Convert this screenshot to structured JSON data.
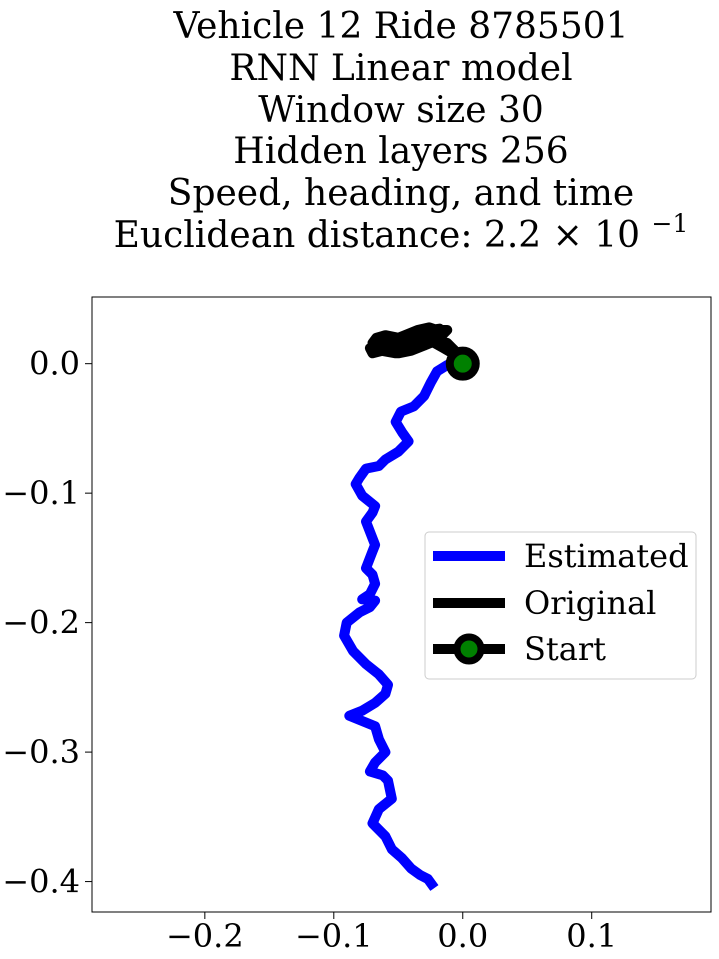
{
  "chart_data": {
    "type": "line",
    "title_lines": [
      "Vehicle 12 Ride 8785501",
      "RNN Linear model",
      "Window size 30",
      "Hidden layers 256",
      "Speed, heading, and time"
    ],
    "title_metric": {
      "label": "Euclidean distance: 2.2",
      "times": "×",
      "base": "10",
      "exponent": "−1"
    },
    "xlabel": "",
    "ylabel": "",
    "xlim": [
      -0.2875,
      0.1925
    ],
    "ylim": [
      -0.4235,
      0.0515
    ],
    "xticks": [
      {
        "value": -0.2,
        "label": "−0.2"
      },
      {
        "value": -0.1,
        "label": "−0.1"
      },
      {
        "value": 0.0,
        "label": "0.0"
      },
      {
        "value": 0.1,
        "label": "0.1"
      }
    ],
    "yticks": [
      {
        "value": 0.0,
        "label": "0.0"
      },
      {
        "value": -0.1,
        "label": "−0.1"
      },
      {
        "value": -0.2,
        "label": "−0.2"
      },
      {
        "value": -0.3,
        "label": "−0.3"
      },
      {
        "value": -0.4,
        "label": "−0.4"
      }
    ],
    "grid": false,
    "legend_position": "center-right",
    "series": [
      {
        "name": "Estimated",
        "color": "#0000ff",
        "x": [
          0.0,
          -0.012,
          -0.02,
          -0.025,
          -0.03,
          -0.038,
          -0.048,
          -0.052,
          -0.047,
          -0.042,
          -0.05,
          -0.06,
          -0.065,
          -0.075,
          -0.08,
          -0.083,
          -0.078,
          -0.068,
          -0.07,
          -0.075,
          -0.068,
          -0.07,
          -0.075,
          -0.07,
          -0.068,
          -0.072,
          -0.078,
          -0.068,
          -0.072,
          -0.08,
          -0.09,
          -0.092,
          -0.085,
          -0.075,
          -0.065,
          -0.058,
          -0.06,
          -0.068,
          -0.078,
          -0.088,
          -0.078,
          -0.068,
          -0.065,
          -0.06,
          -0.068,
          -0.072,
          -0.062,
          -0.058,
          -0.055,
          -0.065,
          -0.07,
          -0.06,
          -0.055,
          -0.047,
          -0.04,
          -0.033,
          -0.027,
          -0.022
        ],
        "y": [
          0.0,
          -0.001,
          -0.006,
          -0.015,
          -0.025,
          -0.033,
          -0.037,
          -0.045,
          -0.053,
          -0.06,
          -0.068,
          -0.074,
          -0.079,
          -0.081,
          -0.088,
          -0.093,
          -0.102,
          -0.11,
          -0.115,
          -0.122,
          -0.14,
          -0.145,
          -0.158,
          -0.163,
          -0.17,
          -0.178,
          -0.182,
          -0.183,
          -0.188,
          -0.192,
          -0.2,
          -0.21,
          -0.222,
          -0.232,
          -0.24,
          -0.248,
          -0.255,
          -0.262,
          -0.268,
          -0.272,
          -0.276,
          -0.28,
          -0.29,
          -0.3,
          -0.308,
          -0.315,
          -0.318,
          -0.322,
          -0.336,
          -0.344,
          -0.355,
          -0.365,
          -0.375,
          -0.382,
          -0.39,
          -0.395,
          -0.398,
          -0.405
        ]
      },
      {
        "name": "Original",
        "color": "#000000",
        "x": [
          0.0,
          -0.008,
          -0.015,
          -0.022,
          -0.03,
          -0.04,
          -0.05,
          -0.06,
          -0.067,
          -0.07,
          -0.062,
          -0.055,
          -0.048,
          -0.04,
          -0.032,
          -0.025,
          -0.02,
          -0.026,
          -0.035,
          -0.045,
          -0.055,
          -0.063,
          -0.068,
          -0.072,
          -0.07,
          -0.062,
          -0.05,
          -0.04,
          -0.03,
          -0.022,
          -0.018,
          -0.025,
          -0.035,
          -0.045,
          -0.055,
          -0.065,
          -0.07,
          -0.063,
          -0.052,
          -0.04,
          -0.03,
          -0.022,
          -0.016,
          -0.012,
          -0.02,
          -0.03,
          -0.04,
          -0.05,
          -0.058,
          -0.05,
          -0.04,
          -0.03,
          -0.02,
          -0.012,
          -0.008,
          -0.004,
          0.0
        ],
        "y": [
          0.0,
          0.008,
          0.012,
          0.016,
          0.018,
          0.02,
          0.02,
          0.022,
          0.02,
          0.016,
          0.012,
          0.01,
          0.012,
          0.015,
          0.018,
          0.022,
          0.026,
          0.028,
          0.026,
          0.022,
          0.018,
          0.016,
          0.014,
          0.012,
          0.008,
          0.01,
          0.012,
          0.016,
          0.02,
          0.024,
          0.027,
          0.026,
          0.024,
          0.02,
          0.018,
          0.016,
          0.014,
          0.01,
          0.008,
          0.01,
          0.014,
          0.018,
          0.022,
          0.026,
          0.026,
          0.022,
          0.018,
          0.014,
          0.01,
          0.008,
          0.01,
          0.014,
          0.018,
          0.016,
          0.012,
          0.008,
          0.004
        ]
      },
      {
        "name": "Start",
        "marker": "circle",
        "marker_edge_color": "#000000",
        "marker_face_color": "#008000",
        "x": [
          0.0
        ],
        "y": [
          0.0
        ]
      }
    ]
  }
}
